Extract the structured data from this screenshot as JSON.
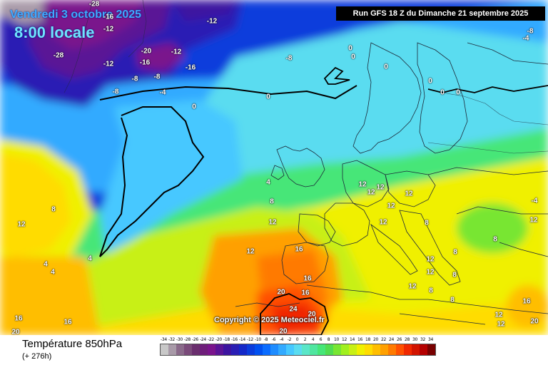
{
  "header": {
    "date": "Vendredi 3 octobre 2025",
    "time": "8:00 locale",
    "run": "Run GFS 18 Z du Dimanche 21 septembre 2025"
  },
  "copyright": "Copyright © 2025 Meteociel.fr",
  "legend": {
    "title": "Température 850hPa",
    "subtitle": "(+ 276h)",
    "levels": [
      "-34",
      "-32",
      "-30",
      "-28",
      "-26",
      "-24",
      "-22",
      "-20",
      "-18",
      "-16",
      "-14",
      "-12",
      "-10",
      "-8",
      "-6",
      "-4",
      "-2",
      "0",
      "2",
      "4",
      "6",
      "8",
      "10",
      "12",
      "14",
      "16",
      "18",
      "20",
      "22",
      "24",
      "26",
      "28",
      "30",
      "32",
      "34"
    ],
    "colors": [
      "#c8c8c8",
      "#a89aa8",
      "#8a6a8a",
      "#7a4a7a",
      "#6a2e6e",
      "#6e1e7a",
      "#7a148c",
      "#5a1496",
      "#3c14a0",
      "#2a1eb4",
      "#1428c8",
      "#0a3cdc",
      "#0050f0",
      "#0a6cff",
      "#1e8cff",
      "#32aaff",
      "#46c8ff",
      "#5adcf0",
      "#5ae6c8",
      "#50e6a0",
      "#46e678",
      "#50dc50",
      "#78e632",
      "#a0f01e",
      "#c8f014",
      "#f0f000",
      "#ffdc00",
      "#ffbe00",
      "#ffa000",
      "#ff7a00",
      "#ff5000",
      "#f02800",
      "#d21400",
      "#b40000",
      "#780000"
    ]
  },
  "map_labels": [
    {
      "name": "iso-label-minus-28",
      "text": "-28"
    },
    {
      "name": "iso-label-minus-16",
      "text": "-16"
    },
    {
      "name": "iso-label-minus-12",
      "text": "-12"
    },
    {
      "name": "iso-label-minus-12",
      "text": "-12"
    },
    {
      "name": "iso-label-minus-20",
      "text": "-20"
    },
    {
      "name": "iso-label-minus-12",
      "text": "-12"
    },
    {
      "name": "iso-label-minus-28",
      "text": "-28"
    },
    {
      "name": "iso-label-minus-12",
      "text": "-12"
    },
    {
      "name": "iso-label-minus-16",
      "text": "-16"
    },
    {
      "name": "iso-label-minus-16",
      "text": "-16"
    },
    {
      "name": "iso-label-minus-8",
      "text": "-8"
    },
    {
      "name": "iso-label-minus-8",
      "text": "-8"
    },
    {
      "name": "iso-label-minus-8",
      "text": "-8"
    },
    {
      "name": "iso-label-minus-4",
      "text": "-4"
    },
    {
      "name": "iso-label-minus-8",
      "text": "-8"
    },
    {
      "name": "iso-label-minus-4",
      "text": "-4"
    },
    {
      "name": "iso-label-0",
      "text": "0"
    },
    {
      "name": "iso-label-0",
      "text": "0"
    },
    {
      "name": "iso-label-0",
      "text": "0"
    },
    {
      "name": "iso-label-0",
      "text": "0"
    },
    {
      "name": "iso-label-0",
      "text": "0"
    },
    {
      "name": "iso-label-0",
      "text": "0"
    },
    {
      "name": "iso-label-0",
      "text": "0"
    },
    {
      "name": "iso-label-4",
      "text": "4"
    },
    {
      "name": "iso-label-8",
      "text": "8"
    },
    {
      "name": "iso-label-12",
      "text": "12"
    },
    {
      "name": "iso-label-8",
      "text": "8"
    },
    {
      "name": "iso-label-12",
      "text": "12"
    },
    {
      "name": "iso-label-12",
      "text": "12"
    },
    {
      "name": "iso-label-4",
      "text": "4"
    },
    {
      "name": "iso-label-4",
      "text": "4"
    },
    {
      "name": "iso-label-4",
      "text": "4"
    },
    {
      "name": "iso-label-16",
      "text": "16"
    },
    {
      "name": "iso-label-16",
      "text": "16"
    },
    {
      "name": "iso-label-20",
      "text": "20"
    },
    {
      "name": "iso-label-16",
      "text": "16"
    },
    {
      "name": "iso-label-20",
      "text": "20"
    },
    {
      "name": "iso-label-16",
      "text": "16"
    },
    {
      "name": "iso-label-16",
      "text": "16"
    },
    {
      "name": "iso-label-24",
      "text": "24"
    },
    {
      "name": "iso-label-20",
      "text": "20"
    },
    {
      "name": "iso-label-20",
      "text": "20"
    },
    {
      "name": "iso-label-12",
      "text": "12"
    },
    {
      "name": "iso-label-12",
      "text": "12"
    },
    {
      "name": "iso-label-12",
      "text": "12"
    },
    {
      "name": "iso-label-12",
      "text": "12"
    },
    {
      "name": "iso-label-12",
      "text": "12"
    },
    {
      "name": "iso-label-12",
      "text": "12"
    },
    {
      "name": "iso-label-12",
      "text": "12"
    },
    {
      "name": "iso-label-12",
      "text": "12"
    },
    {
      "name": "iso-label-8",
      "text": "8"
    },
    {
      "name": "iso-label-8",
      "text": "8"
    },
    {
      "name": "iso-label-8",
      "text": "8"
    },
    {
      "name": "iso-label-8",
      "text": "8"
    },
    {
      "name": "iso-label-12",
      "text": "12"
    },
    {
      "name": "iso-label-12",
      "text": "12"
    },
    {
      "name": "iso-label-12",
      "text": "12"
    },
    {
      "name": "iso-label-20",
      "text": "20"
    },
    {
      "name": "iso-label-16",
      "text": "16"
    },
    {
      "name": "iso-label-8",
      "text": "8"
    },
    {
      "name": "iso-label-8",
      "text": "8"
    },
    {
      "name": "iso-label-minus-4",
      "text": "-4"
    },
    {
      "name": "iso-label-12",
      "text": "12"
    },
    {
      "name": "iso-label-0",
      "text": "0"
    },
    {
      "name": "iso-label-minus-8",
      "text": "-8"
    }
  ]
}
